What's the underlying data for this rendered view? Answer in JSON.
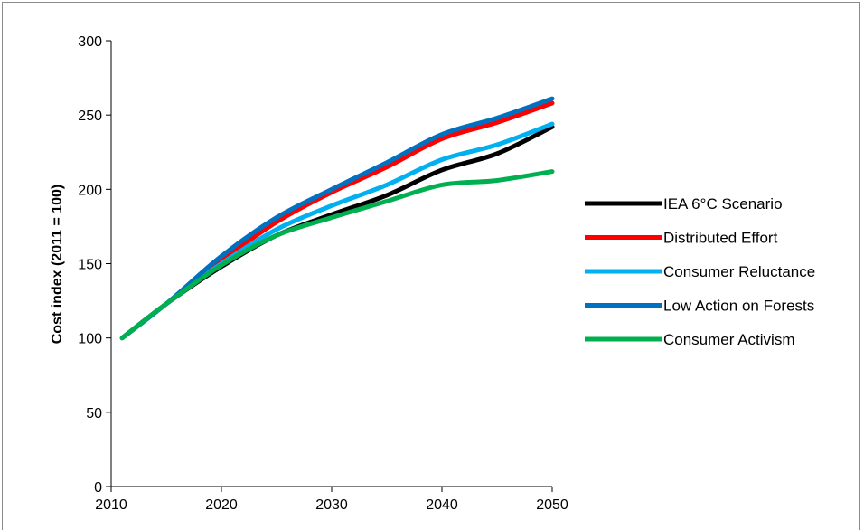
{
  "chart_data": {
    "type": "line",
    "title": "",
    "xlabel": "",
    "ylabel": "Cost index (2011 = 100)",
    "xlim": [
      2010,
      2050
    ],
    "ylim": [
      0,
      300
    ],
    "xticks": [
      2010,
      2020,
      2030,
      2040,
      2050
    ],
    "yticks": [
      0,
      50,
      100,
      150,
      200,
      250,
      300
    ],
    "grid": false,
    "legend_position": "right",
    "x": [
      2011,
      2015,
      2020,
      2025,
      2030,
      2035,
      2040,
      2045,
      2050
    ],
    "series": [
      {
        "name": "IEA 6°C Scenario",
        "color": "#000000",
        "values": [
          100,
          123,
          148,
          169,
          183,
          196,
          213,
          224,
          242
        ]
      },
      {
        "name": "Distributed Effort",
        "color": "#ff0000",
        "values": [
          100,
          123,
          152,
          178,
          198,
          215,
          234,
          245,
          258
        ]
      },
      {
        "name": "Consumer Reluctance",
        "color": "#00b0f0",
        "values": [
          100,
          123,
          150,
          173,
          189,
          203,
          220,
          230,
          244
        ]
      },
      {
        "name": "Low Action on Forests",
        "color": "#0070c0",
        "values": [
          100,
          123,
          155,
          181,
          200,
          218,
          237,
          248,
          261
        ]
      },
      {
        "name": "Consumer Activism",
        "color": "#00b050",
        "values": [
          100,
          123,
          149,
          169,
          181,
          192,
          203,
          206,
          212
        ]
      }
    ]
  }
}
